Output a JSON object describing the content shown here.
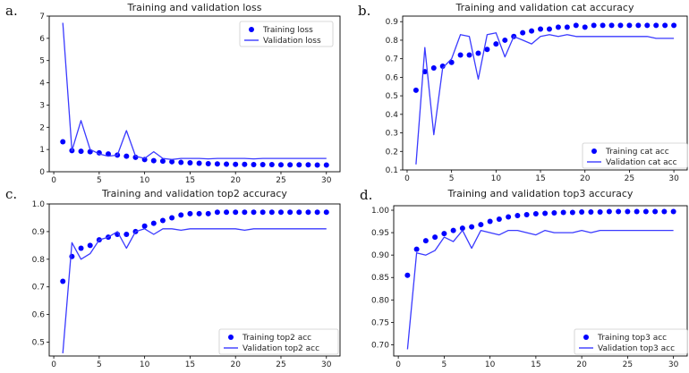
{
  "chart_data": [
    {
      "type": "scatter",
      "panel_label": "a.",
      "title": "Training and validation loss",
      "xlabel": "",
      "ylabel": "",
      "xlim": [
        -0.5,
        31.5
      ],
      "ylim": [
        0,
        7
      ],
      "xticks": [
        0,
        5,
        10,
        15,
        20,
        25,
        30
      ],
      "yticks": [
        0,
        1,
        2,
        3,
        4,
        5,
        6,
        7
      ],
      "ytick_decimals": 0,
      "legend": "top-right",
      "x": [
        1,
        2,
        3,
        4,
        5,
        6,
        7,
        8,
        9,
        10,
        11,
        12,
        13,
        14,
        15,
        16,
        17,
        18,
        19,
        20,
        21,
        22,
        23,
        24,
        25,
        26,
        27,
        28,
        29,
        30
      ],
      "series": [
        {
          "name": "Training loss",
          "style": "markers",
          "color": "#0000ff",
          "values": [
            1.35,
            0.95,
            0.92,
            0.9,
            0.85,
            0.8,
            0.75,
            0.7,
            0.65,
            0.55,
            0.5,
            0.48,
            0.45,
            0.42,
            0.4,
            0.38,
            0.36,
            0.35,
            0.34,
            0.33,
            0.33,
            0.32,
            0.32,
            0.32,
            0.31,
            0.31,
            0.31,
            0.31,
            0.3,
            0.3
          ]
        },
        {
          "name": "Validation loss",
          "style": "line",
          "color": "#3a3aff",
          "values": [
            6.7,
            0.95,
            2.3,
            1.0,
            0.8,
            0.7,
            0.75,
            1.85,
            0.7,
            0.6,
            0.9,
            0.6,
            0.55,
            0.6,
            0.6,
            0.6,
            0.58,
            0.6,
            0.6,
            0.6,
            0.6,
            0.58,
            0.6,
            0.6,
            0.6,
            0.6,
            0.6,
            0.6,
            0.6,
            0.6
          ]
        }
      ]
    },
    {
      "type": "scatter",
      "panel_label": "b.",
      "title": "Training and validation cat accuracy",
      "xlabel": "",
      "ylabel": "",
      "xlim": [
        -0.5,
        31.5
      ],
      "ylim": [
        0.1,
        0.93
      ],
      "xticks": [
        0,
        5,
        10,
        15,
        20,
        25,
        30
      ],
      "yticks": [
        0.1,
        0.2,
        0.3,
        0.4,
        0.5,
        0.6,
        0.7,
        0.8,
        0.9
      ],
      "ytick_decimals": 1,
      "legend": "bottom-right",
      "x": [
        1,
        2,
        3,
        4,
        5,
        6,
        7,
        8,
        9,
        10,
        11,
        12,
        13,
        14,
        15,
        16,
        17,
        18,
        19,
        20,
        21,
        22,
        23,
        24,
        25,
        26,
        27,
        28,
        29,
        30
      ],
      "series": [
        {
          "name": "Training cat acc",
          "style": "markers",
          "color": "#0000ff",
          "values": [
            0.53,
            0.63,
            0.65,
            0.66,
            0.68,
            0.72,
            0.72,
            0.73,
            0.75,
            0.78,
            0.8,
            0.82,
            0.84,
            0.85,
            0.86,
            0.86,
            0.87,
            0.87,
            0.88,
            0.87,
            0.88,
            0.88,
            0.88,
            0.88,
            0.88,
            0.88,
            0.88,
            0.88,
            0.88,
            0.88
          ]
        },
        {
          "name": "Validation cat acc",
          "style": "line",
          "color": "#3a3aff",
          "values": [
            0.13,
            0.76,
            0.29,
            0.65,
            0.7,
            0.83,
            0.82,
            0.59,
            0.83,
            0.84,
            0.71,
            0.82,
            0.8,
            0.78,
            0.82,
            0.83,
            0.82,
            0.83,
            0.82,
            0.82,
            0.82,
            0.82,
            0.82,
            0.82,
            0.82,
            0.82,
            0.82,
            0.81,
            0.81,
            0.81
          ]
        }
      ]
    },
    {
      "type": "scatter",
      "panel_label": "c.",
      "title": "Training and validation top2 accuracy",
      "xlabel": "",
      "ylabel": "",
      "xlim": [
        -0.5,
        31.5
      ],
      "ylim": [
        0.45,
        1.0
      ],
      "xticks": [
        0,
        5,
        10,
        15,
        20,
        25,
        30
      ],
      "yticks": [
        0.5,
        0.6,
        0.7,
        0.8,
        0.9,
        1.0
      ],
      "ytick_decimals": 1,
      "legend": "bottom-right",
      "x": [
        1,
        2,
        3,
        4,
        5,
        6,
        7,
        8,
        9,
        10,
        11,
        12,
        13,
        14,
        15,
        16,
        17,
        18,
        19,
        20,
        21,
        22,
        23,
        24,
        25,
        26,
        27,
        28,
        29,
        30
      ],
      "series": [
        {
          "name": "Training top2 acc",
          "style": "markers",
          "color": "#0000ff",
          "values": [
            0.72,
            0.81,
            0.84,
            0.85,
            0.87,
            0.88,
            0.89,
            0.89,
            0.9,
            0.92,
            0.93,
            0.94,
            0.95,
            0.96,
            0.965,
            0.965,
            0.965,
            0.97,
            0.97,
            0.97,
            0.97,
            0.97,
            0.97,
            0.97,
            0.97,
            0.97,
            0.97,
            0.97,
            0.97,
            0.97
          ]
        },
        {
          "name": "Validation top2 acc",
          "style": "line",
          "color": "#3a3aff",
          "values": [
            0.46,
            0.86,
            0.8,
            0.82,
            0.87,
            0.88,
            0.9,
            0.84,
            0.9,
            0.91,
            0.89,
            0.91,
            0.91,
            0.905,
            0.91,
            0.91,
            0.91,
            0.91,
            0.91,
            0.91,
            0.905,
            0.91,
            0.91,
            0.91,
            0.91,
            0.91,
            0.91,
            0.91,
            0.91,
            0.91
          ]
        }
      ]
    },
    {
      "type": "scatter",
      "panel_label": "d.",
      "title": "Training and validation top3 accuracy",
      "xlabel": "",
      "ylabel": "",
      "xlim": [
        -0.5,
        31.5
      ],
      "ylim": [
        0.675,
        1.01
      ],
      "xticks": [
        0,
        5,
        10,
        15,
        20,
        25,
        30
      ],
      "yticks": [
        0.7,
        0.75,
        0.8,
        0.85,
        0.9,
        0.95,
        1.0
      ],
      "ytick_decimals": 2,
      "legend": "bottom-right",
      "x": [
        1,
        2,
        3,
        4,
        5,
        6,
        7,
        8,
        9,
        10,
        11,
        12,
        13,
        14,
        15,
        16,
        17,
        18,
        19,
        20,
        21,
        22,
        23,
        24,
        25,
        26,
        27,
        28,
        29,
        30
      ],
      "series": [
        {
          "name": "Training top3 acc",
          "style": "markers",
          "color": "#0000ff",
          "values": [
            0.855,
            0.913,
            0.932,
            0.94,
            0.948,
            0.955,
            0.96,
            0.963,
            0.968,
            0.975,
            0.98,
            0.985,
            0.988,
            0.99,
            0.992,
            0.993,
            0.994,
            0.995,
            0.995,
            0.996,
            0.996,
            0.996,
            0.997,
            0.997,
            0.997,
            0.997,
            0.997,
            0.997,
            0.997,
            0.997
          ]
        },
        {
          "name": "Validation top3 acc",
          "style": "line",
          "color": "#3a3aff",
          "values": [
            0.69,
            0.905,
            0.9,
            0.91,
            0.94,
            0.93,
            0.955,
            0.915,
            0.955,
            0.95,
            0.945,
            0.955,
            0.955,
            0.95,
            0.945,
            0.955,
            0.95,
            0.95,
            0.95,
            0.955,
            0.95,
            0.955,
            0.955,
            0.955,
            0.955,
            0.955,
            0.955,
            0.955,
            0.955,
            0.955
          ]
        }
      ]
    }
  ]
}
